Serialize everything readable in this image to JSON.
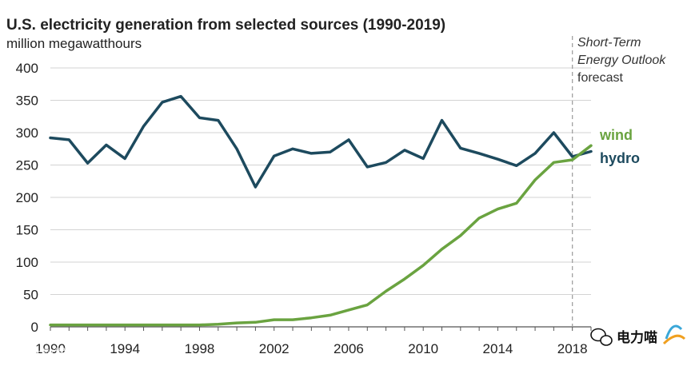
{
  "chart_data": {
    "type": "line",
    "title": "U.S. electricity generation from selected sources (1990-2019)",
    "ylabel": "million megawatthours",
    "xlabel": "",
    "ylim": [
      0,
      400
    ],
    "xlim": [
      1990,
      2019
    ],
    "yticks": [
      0,
      50,
      100,
      150,
      200,
      250,
      300,
      350,
      400
    ],
    "xticks": [
      1990,
      1994,
      1998,
      2002,
      2006,
      2010,
      2014,
      2018
    ],
    "grid": true,
    "x": [
      1990,
      1991,
      1992,
      1993,
      1994,
      1995,
      1996,
      1997,
      1998,
      1999,
      2000,
      2001,
      2002,
      2003,
      2004,
      2005,
      2006,
      2007,
      2008,
      2009,
      2010,
      2011,
      2012,
      2013,
      2014,
      2015,
      2016,
      2017,
      2018,
      2019
    ],
    "series": [
      {
        "name": "hydro",
        "label": "hydro",
        "color": "#1d4a5e",
        "values": [
          292,
          289,
          253,
          281,
          260,
          310,
          347,
          356,
          323,
          319,
          275,
          216,
          264,
          275,
          268,
          270,
          289,
          247,
          254,
          273,
          260,
          319,
          276,
          268,
          259,
          249,
          268,
          300,
          263,
          271
        ]
      },
      {
        "name": "wind",
        "label": "wind",
        "color": "#6aa340",
        "values": [
          3,
          3,
          3,
          3,
          3,
          3,
          3,
          3,
          3,
          4,
          6,
          7,
          11,
          11,
          14,
          18,
          26,
          34,
          55,
          74,
          95,
          120,
          141,
          168,
          182,
          191,
          227,
          254,
          258,
          280
        ]
      }
    ],
    "forecast_start": 2018,
    "annotation": {
      "line1": "Short-Term",
      "line2": "Energy Outlook",
      "line3": "forecast"
    }
  },
  "watermarks": {
    "left": "大数据局",
    "right": "电力喵"
  },
  "colors": {
    "grid": "#d3d3d3",
    "axis": "#555555",
    "forecast_line": "#9a9a9a"
  }
}
